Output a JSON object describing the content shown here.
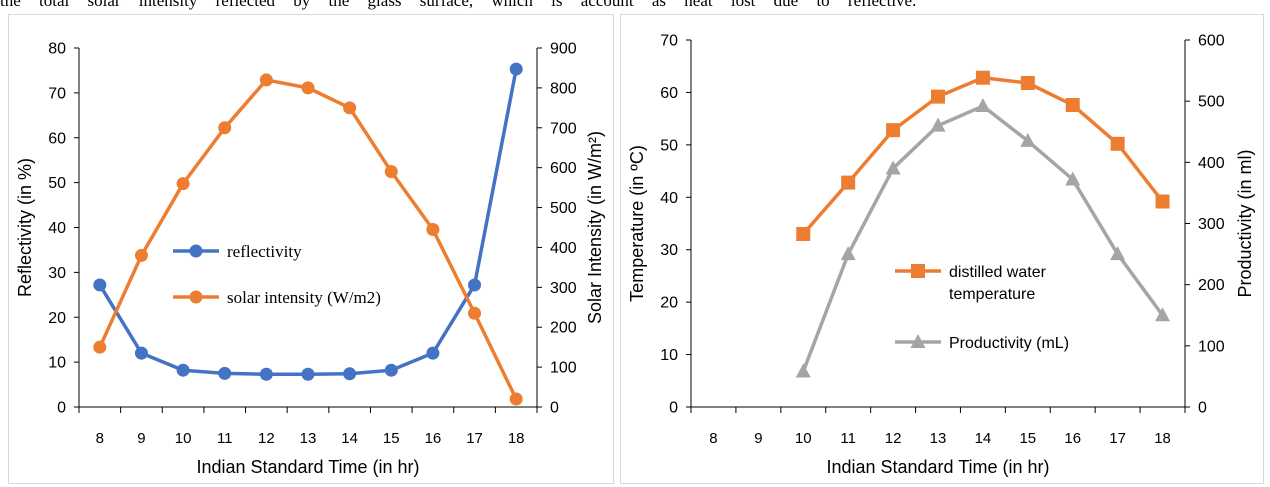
{
  "page": {
    "top_text": "the total solar intensity reflected by the glass surface, which is account as heat lost due to reflective."
  },
  "chart_data": [
    {
      "type": "line",
      "x": [
        8,
        9,
        10,
        11,
        12,
        13,
        14,
        15,
        16,
        17,
        18
      ],
      "xlabel": "Indian Standard Time (in hr)",
      "ylabel": "Reflectivity (in %)",
      "y2label": "Solar Intensity (in W/m²)",
      "ylim": [
        0,
        80
      ],
      "y2lim": [
        0,
        900
      ],
      "yticks": [
        0,
        10,
        20,
        30,
        40,
        50,
        60,
        70,
        80
      ],
      "y2ticks": [
        0,
        100,
        200,
        300,
        400,
        500,
        600,
        700,
        800,
        900
      ],
      "grid": false,
      "legend": "center",
      "series": [
        {
          "name": "reflectivity",
          "axis": "left",
          "color": "#4472c4",
          "marker": "circle",
          "values": [
            27.2,
            12,
            8.2,
            7.5,
            7.3,
            7.3,
            7.4,
            8.2,
            12,
            27.2,
            75.3
          ]
        },
        {
          "name": "solar intensity (W/m2)",
          "axis": "right",
          "color": "#ed7d31",
          "marker": "circle",
          "values": [
            150,
            380,
            560,
            700,
            820,
            800,
            750,
            590,
            445,
            235,
            20
          ]
        }
      ]
    },
    {
      "type": "line",
      "x": [
        8,
        9,
        10,
        11,
        12,
        13,
        14,
        15,
        16,
        17,
        18
      ],
      "xlabel": "Indian Standard Time (in hr)",
      "ylabel": "Temperature (in ºC)",
      "y2label": "Productivity (in ml)",
      "ylim": [
        0,
        70
      ],
      "y2lim": [
        0,
        600
      ],
      "yticks": [
        0,
        10,
        20,
        30,
        40,
        50,
        60,
        70
      ],
      "y2ticks": [
        0,
        100,
        200,
        300,
        400,
        500,
        600
      ],
      "grid": false,
      "legend": "center-right",
      "series": [
        {
          "name": "distilled water temperature",
          "legend_lines": [
            "distilled water",
            "temperature"
          ],
          "axis": "left",
          "color": "#ed7d31",
          "marker": "square",
          "values": [
            null,
            null,
            33,
            42.8,
            52.8,
            59.2,
            62.8,
            61.8,
            57.6,
            50.2,
            39.2
          ]
        },
        {
          "name": "Productivity (mL)",
          "axis": "right",
          "color": "#a5a5a5",
          "marker": "triangle",
          "values": [
            null,
            null,
            58,
            250,
            390,
            460,
            492,
            435,
            372,
            250,
            150
          ]
        }
      ]
    }
  ]
}
